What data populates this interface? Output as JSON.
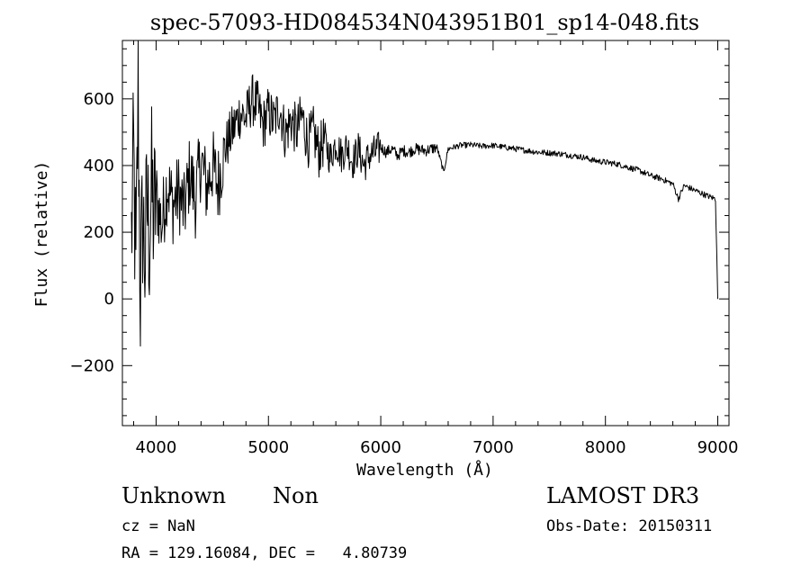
{
  "chart_data": {
    "type": "line",
    "title": "spec-57093-HD084534N043951B01_sp14-048.fits",
    "xlabel": "Wavelength (Å)",
    "ylabel": "Flux (relative)",
    "xlim": [
      3700,
      9100
    ],
    "ylim": [
      -380,
      775
    ],
    "x_ticks": [
      4000,
      5000,
      6000,
      7000,
      8000,
      9000
    ],
    "x_tick_labels": [
      "4000",
      "5000",
      "6000",
      "7000",
      "8000",
      "9000"
    ],
    "y_ticks": [
      -200,
      0,
      200,
      400,
      600
    ],
    "y_tick_labels": [
      "−200",
      "0",
      "200",
      "400",
      "600"
    ],
    "grid": false,
    "legend": "none",
    "series": [
      {
        "color": "#000000",
        "x": [
          3780,
          3800,
          3820,
          3840,
          3860,
          3880,
          3900,
          3920,
          3940,
          3960,
          3980,
          4000,
          4050,
          4100,
          4150,
          4200,
          4250,
          4300,
          4350,
          4400,
          4450,
          4500,
          4550,
          4600,
          4650,
          4700,
          4750,
          4800,
          4850,
          4900,
          4950,
          5000,
          5050,
          5100,
          5150,
          5200,
          5250,
          5300,
          5350,
          5400,
          5450,
          5500,
          5550,
          5600,
          5650,
          5700,
          5750,
          5800,
          5850,
          5900,
          5950,
          6000,
          6050,
          6100,
          6150,
          6200,
          6250,
          6300,
          6400,
          6500,
          6560,
          6600,
          6700,
          6800,
          6900,
          7000,
          7100,
          7200,
          7300,
          7400,
          7500,
          7600,
          7700,
          7800,
          7900,
          8000,
          8100,
          8200,
          8300,
          8400,
          8500,
          8600,
          8650,
          8700,
          8800,
          8900,
          8980,
          9000
        ],
        "y": [
          180,
          420,
          40,
          620,
          10,
          250,
          120,
          280,
          190,
          330,
          240,
          310,
          220,
          350,
          280,
          320,
          260,
          380,
          300,
          420,
          330,
          400,
          340,
          440,
          480,
          520,
          560,
          540,
          600,
          580,
          520,
          560,
          530,
          580,
          490,
          540,
          500,
          550,
          470,
          500,
          440,
          480,
          420,
          470,
          430,
          460,
          410,
          450,
          400,
          430,
          440,
          455,
          440,
          450,
          430,
          445,
          440,
          450,
          445,
          455,
          380,
          450,
          460,
          462,
          458,
          460,
          455,
          450,
          445,
          440,
          438,
          435,
          430,
          425,
          415,
          410,
          405,
          395,
          385,
          370,
          360,
          345,
          300,
          340,
          325,
          310,
          300,
          0
        ]
      }
    ]
  },
  "info": {
    "object_class": "Unknown",
    "object_subclass": "Non",
    "survey": "LAMOST DR3",
    "cz": "cz = NaN",
    "obs_date": "Obs-Date: 20150311",
    "coords": "RA = 129.16084, DEC =   4.80739"
  }
}
